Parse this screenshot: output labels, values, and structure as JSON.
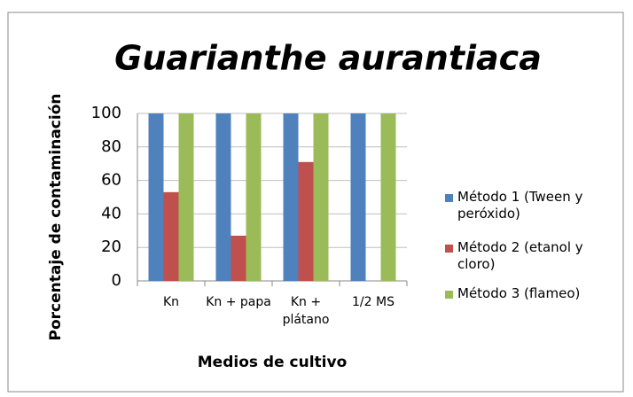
{
  "chart_data": {
    "type": "bar",
    "title": "Guarianthe aurantiaca",
    "xlabel": "Medios de cultivo",
    "ylabel": "Porcentaje de contaminación",
    "categories": [
      "Kn",
      "Kn + papa",
      "Kn + plátano",
      "1/2 MS"
    ],
    "series": [
      {
        "name": "Método 1 (Tween y peróxido)",
        "color": "#4f81bd",
        "values": [
          100,
          100,
          100,
          100
        ]
      },
      {
        "name": "Método 2 (etanol y cloro)",
        "color": "#c0504d",
        "values": [
          53,
          27,
          71,
          0
        ]
      },
      {
        "name": "Método 3 (flameo)",
        "color": "#9bbb59",
        "values": [
          100,
          100,
          100,
          100
        ]
      }
    ],
    "ylim": [
      0,
      100
    ],
    "yticks": [
      0,
      20,
      40,
      60,
      80,
      100
    ],
    "grid": true,
    "legend": "right"
  }
}
